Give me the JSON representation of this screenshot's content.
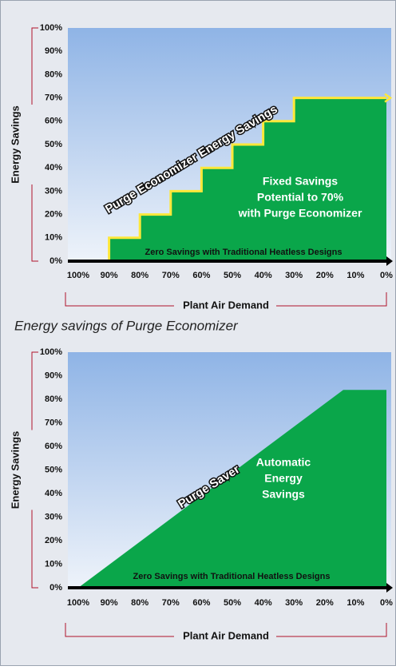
{
  "chart_data": [
    {
      "type": "step",
      "x": [
        90,
        80,
        70,
        60,
        50,
        40,
        30
      ],
      "values": [
        10,
        20,
        30,
        40,
        50,
        60,
        70
      ],
      "color": "#0aa64a",
      "edge_color": "#ffe83a",
      "ylabel": "Energy Savings",
      "xlabel": "Plant Air Demand",
      "xlim": [
        100,
        0
      ],
      "ylim": [
        0,
        100
      ],
      "xticks": [
        {
          "value": 100,
          "label": "100%"
        },
        {
          "value": 90,
          "label": "90%"
        },
        {
          "value": 80,
          "label": "80%"
        },
        {
          "value": 70,
          "label": "70%"
        },
        {
          "value": 60,
          "label": "60%"
        },
        {
          "value": 50,
          "label": "50%"
        },
        {
          "value": 40,
          "label": "40%"
        },
        {
          "value": 30,
          "label": "30%"
        },
        {
          "value": 20,
          "label": "20%"
        },
        {
          "value": 10,
          "label": "10%"
        },
        {
          "value": 0,
          "label": "0%"
        }
      ],
      "yticks": [
        {
          "value": 0,
          "label": "0%"
        },
        {
          "value": 10,
          "label": "10%"
        },
        {
          "value": 20,
          "label": "20%"
        },
        {
          "value": 30,
          "label": "30%"
        },
        {
          "value": 40,
          "label": "40%"
        },
        {
          "value": 50,
          "label": "50%"
        },
        {
          "value": 60,
          "label": "60%"
        },
        {
          "value": 70,
          "label": "70%"
        },
        {
          "value": 80,
          "label": "80%"
        },
        {
          "value": 90,
          "label": "90%"
        },
        {
          "value": 100,
          "label": "100%"
        }
      ],
      "annotations": [
        "Purge Economizer Energy Savings",
        "Fixed Savings",
        "Potential to 70%",
        "with Purge Economizer",
        "Zero Savings with Traditional Heatless Designs"
      ],
      "caption": "Energy savings of Purge Economizer"
    },
    {
      "type": "area",
      "x": [
        100,
        14,
        0
      ],
      "values": [
        0,
        84,
        84
      ],
      "color": "#0aa64a",
      "ylabel": "Energy Savings",
      "xlabel": "Plant Air Demand",
      "xlim": [
        100,
        0
      ],
      "ylim": [
        0,
        100
      ],
      "xticks": [
        {
          "value": 100,
          "label": "100%"
        },
        {
          "value": 90,
          "label": "90%"
        },
        {
          "value": 80,
          "label": "80%"
        },
        {
          "value": 70,
          "label": "70%"
        },
        {
          "value": 60,
          "label": "60%"
        },
        {
          "value": 50,
          "label": "50%"
        },
        {
          "value": 40,
          "label": "40%"
        },
        {
          "value": 30,
          "label": "30%"
        },
        {
          "value": 20,
          "label": "20%"
        },
        {
          "value": 10,
          "label": "10%"
        },
        {
          "value": 0,
          "label": "0%"
        }
      ],
      "yticks": [
        {
          "value": 0,
          "label": "0%"
        },
        {
          "value": 10,
          "label": "10%"
        },
        {
          "value": 20,
          "label": "20%"
        },
        {
          "value": 30,
          "label": "30%"
        },
        {
          "value": 40,
          "label": "40%"
        },
        {
          "value": 50,
          "label": "50%"
        },
        {
          "value": 60,
          "label": "60%"
        },
        {
          "value": 70,
          "label": "70%"
        },
        {
          "value": 80,
          "label": "80%"
        },
        {
          "value": 90,
          "label": "90%"
        },
        {
          "value": 100,
          "label": "100%"
        }
      ],
      "annotations": [
        "Purge Saver",
        "Automatic",
        "Energy",
        "Savings",
        "Zero Savings with Traditional Heatless Designs"
      ]
    }
  ]
}
